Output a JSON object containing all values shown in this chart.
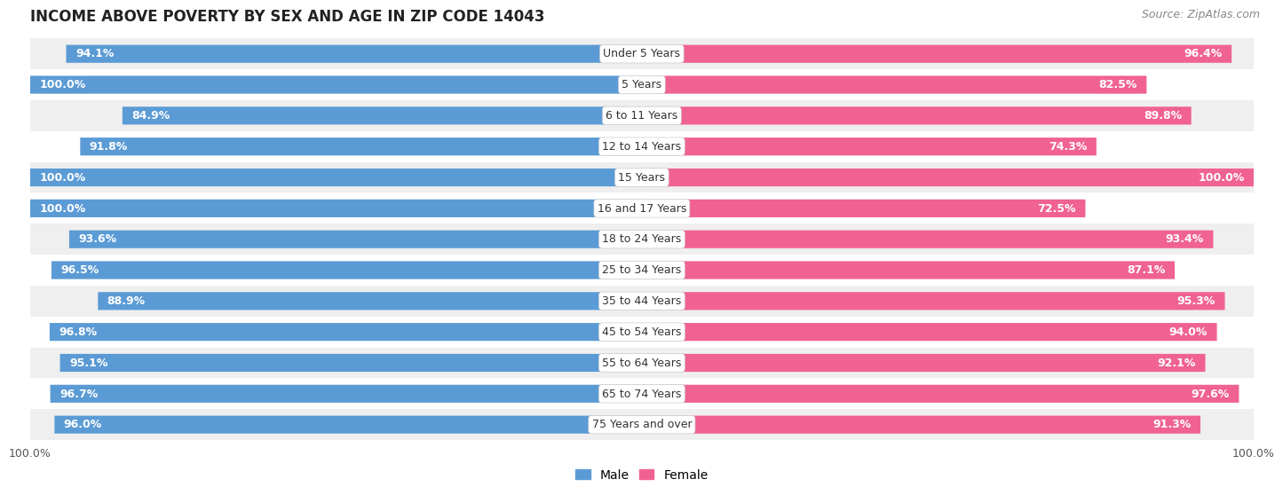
{
  "title": "INCOME ABOVE POVERTY BY SEX AND AGE IN ZIP CODE 14043",
  "source": "Source: ZipAtlas.com",
  "categories": [
    "Under 5 Years",
    "5 Years",
    "6 to 11 Years",
    "12 to 14 Years",
    "15 Years",
    "16 and 17 Years",
    "18 to 24 Years",
    "25 to 34 Years",
    "35 to 44 Years",
    "45 to 54 Years",
    "55 to 64 Years",
    "65 to 74 Years",
    "75 Years and over"
  ],
  "male_values": [
    94.1,
    100.0,
    84.9,
    91.8,
    100.0,
    100.0,
    93.6,
    96.5,
    88.9,
    96.8,
    95.1,
    96.7,
    96.0
  ],
  "female_values": [
    96.4,
    82.5,
    89.8,
    74.3,
    100.0,
    72.5,
    93.4,
    87.1,
    95.3,
    94.0,
    92.1,
    97.6,
    91.3
  ],
  "male_color_dark": "#5b9bd5",
  "male_color_light": "#bdd7ee",
  "female_color_dark": "#f06292",
  "female_color_light": "#f8bbd0",
  "male_label": "Male",
  "female_label": "Female",
  "background_color": "#ffffff",
  "row_bg_even": "#efefef",
  "row_bg_odd": "#ffffff",
  "axis_max": 100.0,
  "title_fontsize": 12,
  "source_fontsize": 9,
  "label_fontsize": 9,
  "cat_fontsize": 9,
  "bar_height": 0.55,
  "bottom_label": "100.0%"
}
